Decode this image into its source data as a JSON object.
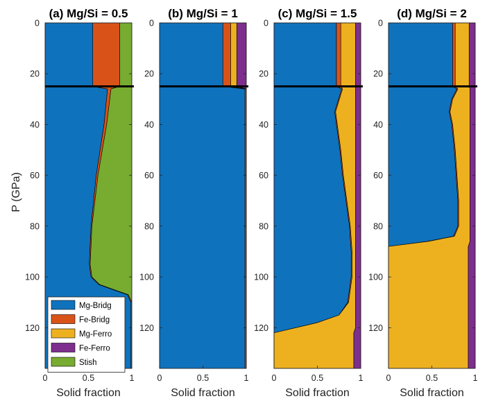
{
  "figure": {
    "y_axis_label": "P (GPa)",
    "x_axis_label": "Solid fraction"
  },
  "chart_data": {
    "type": "area",
    "stacked": true,
    "orientation": "vertical-y-down",
    "xlim": [
      0,
      1
    ],
    "ylim": [
      0,
      136
    ],
    "x_ticks": [
      "0",
      "0.5",
      "1"
    ],
    "y_ticks": [
      "0",
      "20",
      "40",
      "60",
      "80",
      "100",
      "120"
    ],
    "boundary_line_P": 25,
    "component_order": [
      "Mg-Bridg",
      "Fe-Bridg",
      "Mg-Ferro",
      "Fe-Ferro",
      "Stish"
    ],
    "colors": {
      "Mg-Bridg": "#0F72BD",
      "Fe-Bridg": "#D95319",
      "Mg-Ferro": "#EDB120",
      "Fe-Ferro": "#7E2F8E",
      "Stish": "#77AC30"
    },
    "legend": {
      "placement": "bottom-left of panel (a)",
      "entries": [
        "Mg-Bridg",
        "Fe-Bridg",
        "Mg-Ferro",
        "Fe-Ferro",
        "Stish"
      ]
    },
    "panels": [
      {
        "title": "(a) Mg/Si = 0.5",
        "show_ylabel": true,
        "pressure": [
          0,
          25,
          26,
          40,
          60,
          80,
          95,
          100,
          103,
          107,
          110,
          136
        ],
        "fractions": {
          "Mg-Bridg": [
            0.55,
            0.55,
            0.72,
            0.68,
            0.59,
            0.53,
            0.51,
            0.53,
            0.62,
            0.95,
            0.99,
            0.99
          ],
          "Fe-Bridg": [
            0.31,
            0.31,
            0.04,
            0.03,
            0.02,
            0.01,
            0.01,
            0.01,
            0.01,
            0.01,
            0.01,
            0.01
          ],
          "Mg-Ferro": [
            0,
            0,
            0,
            0,
            0,
            0,
            0,
            0,
            0,
            0,
            0,
            0
          ],
          "Fe-Ferro": [
            0,
            0,
            0,
            0,
            0,
            0,
            0,
            0,
            0,
            0,
            0,
            0
          ],
          "Stish": [
            0.14,
            0.14,
            0.24,
            0.29,
            0.39,
            0.46,
            0.48,
            0.46,
            0.37,
            0.04,
            0,
            0
          ]
        }
      },
      {
        "title": "(b) Mg/Si = 1",
        "show_ylabel": false,
        "pressure": [
          0,
          25,
          26,
          136
        ],
        "fractions": {
          "Mg-Bridg": [
            0.73,
            0.73,
            0.985,
            0.985
          ],
          "Fe-Bridg": [
            0.09,
            0.09,
            0.015,
            0.015
          ],
          "Mg-Ferro": [
            0.07,
            0.07,
            0,
            0
          ],
          "Fe-Ferro": [
            0.11,
            0.11,
            0,
            0
          ],
          "Stish": [
            0,
            0,
            0,
            0
          ]
        }
      },
      {
        "title": "(c) Mg/Si = 1.5",
        "show_ylabel": false,
        "pressure": [
          0,
          25,
          26,
          35,
          40,
          50,
          60,
          70,
          80,
          90,
          100,
          110,
          115,
          118,
          120,
          122,
          136
        ],
        "fractions": {
          "Mg-Bridg": [
            0.72,
            0.72,
            0.78,
            0.7,
            0.72,
            0.76,
            0.79,
            0.83,
            0.87,
            0.89,
            0.89,
            0.85,
            0.75,
            0.5,
            0.25,
            0,
            0
          ],
          "Fe-Bridg": [
            0.05,
            0.05,
            0.01,
            0.01,
            0.01,
            0.01,
            0.01,
            0.01,
            0.01,
            0.01,
            0.01,
            0.01,
            0,
            0,
            0,
            0,
            0
          ],
          "Mg-Ferro": [
            0.17,
            0.17,
            0.15,
            0.23,
            0.21,
            0.17,
            0.14,
            0.1,
            0.06,
            0.04,
            0.04,
            0.08,
            0.19,
            0.44,
            0.69,
            0.92,
            0.92
          ],
          "Fe-Ferro": [
            0.06,
            0.06,
            0.06,
            0.06,
            0.06,
            0.06,
            0.06,
            0.06,
            0.06,
            0.06,
            0.06,
            0.06,
            0.06,
            0.06,
            0.06,
            0.08,
            0.08
          ],
          "Stish": [
            0,
            0,
            0,
            0,
            0,
            0,
            0,
            0,
            0,
            0,
            0,
            0,
            0,
            0,
            0,
            0,
            0
          ]
        }
      },
      {
        "title": "(d) Mg/Si = 2",
        "show_ylabel": false,
        "pressure": [
          0,
          25,
          26,
          30,
          35,
          40,
          50,
          60,
          70,
          80,
          84,
          86,
          88,
          136
        ],
        "fractions": {
          "Mg-Bridg": [
            0.74,
            0.74,
            0.79,
            0.73,
            0.7,
            0.73,
            0.76,
            0.78,
            0.8,
            0.8,
            0.75,
            0.45,
            0,
            0
          ],
          "Fe-Bridg": [
            0.03,
            0.03,
            0.01,
            0.01,
            0.01,
            0.01,
            0.01,
            0.01,
            0.01,
            0.01,
            0.01,
            0.01,
            0,
            0
          ],
          "Mg-Ferro": [
            0.16,
            0.16,
            0.14,
            0.2,
            0.23,
            0.2,
            0.17,
            0.15,
            0.13,
            0.13,
            0.18,
            0.48,
            0.92,
            0.92
          ],
          "Fe-Ferro": [
            0.07,
            0.07,
            0.06,
            0.06,
            0.06,
            0.06,
            0.06,
            0.06,
            0.06,
            0.06,
            0.06,
            0.06,
            0.08,
            0.08
          ],
          "Stish": [
            0,
            0,
            0,
            0,
            0,
            0,
            0,
            0,
            0,
            0,
            0,
            0,
            0,
            0
          ]
        }
      }
    ]
  }
}
